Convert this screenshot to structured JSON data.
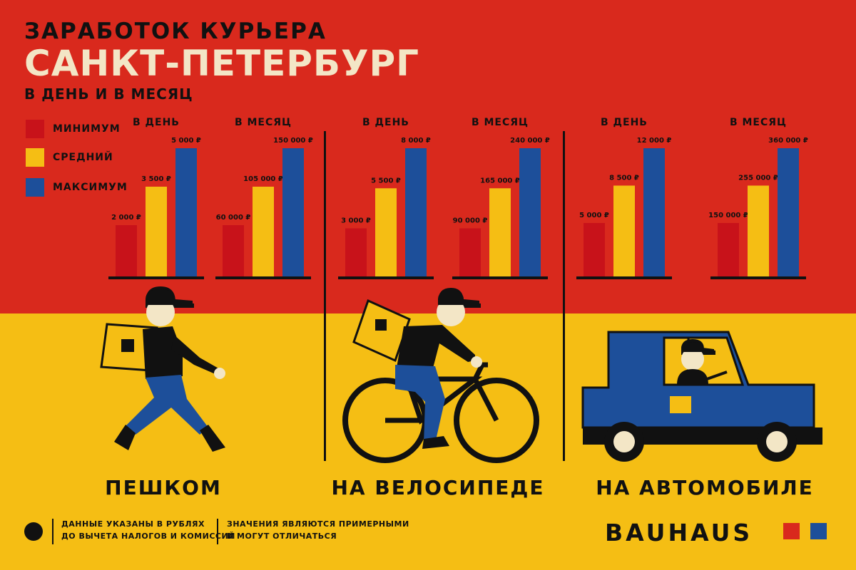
{
  "header": {
    "title_line1": "ЗАРАБОТОК КУРЬЕРА",
    "title_line2": "САНКТ-ПЕТЕРБУРГ",
    "subtitle": "В ДЕНЬ И В МЕСЯЦ"
  },
  "legend": [
    {
      "label": "МИНИМУМ",
      "color": "#c8121a"
    },
    {
      "label": "СРЕДНИЙ",
      "color": "#f5be14"
    },
    {
      "label": "МАКСИМУМ",
      "color": "#1d4f9a"
    }
  ],
  "modes": [
    "ПЕШКОМ",
    "НА ВЕЛОСИПЕДЕ",
    "НА АВТОМОБИЛЕ"
  ],
  "chart_data": [
    {
      "type": "bar",
      "group": "ПЕШКОМ",
      "subtitle": "В ДЕНЬ",
      "categories": [
        "МИНИМУМ",
        "СРЕДНИЙ",
        "МАКСИМУМ"
      ],
      "values": [
        2000,
        3500,
        5000
      ],
      "labels": [
        "2 000 ₽",
        "3 500 ₽",
        "5 000 ₽"
      ]
    },
    {
      "type": "bar",
      "group": "ПЕШКОМ",
      "subtitle": "В МЕСЯЦ",
      "categories": [
        "МИНИМУМ",
        "СРЕДНИЙ",
        "МАКСИМУМ"
      ],
      "values": [
        60000,
        105000,
        150000
      ],
      "labels": [
        "60 000 ₽",
        "105 000 ₽",
        "150 000 ₽"
      ]
    },
    {
      "type": "bar",
      "group": "НА ВЕЛОСИПЕДЕ",
      "subtitle": "В ДЕНЬ",
      "categories": [
        "МИНИМУМ",
        "СРЕДНИЙ",
        "МАКСИМУМ"
      ],
      "values": [
        3000,
        5500,
        8000
      ],
      "labels": [
        "3 000 ₽",
        "5 500 ₽",
        "8 000 ₽"
      ]
    },
    {
      "type": "bar",
      "group": "НА ВЕЛОСИПЕДЕ",
      "subtitle": "В МЕСЯЦ",
      "categories": [
        "МИНИМУМ",
        "СРЕДНИЙ",
        "МАКСИМУМ"
      ],
      "values": [
        90000,
        165000,
        240000
      ],
      "labels": [
        "90 000 ₽",
        "165 000 ₽",
        "240 000 ₽"
      ]
    },
    {
      "type": "bar",
      "group": "НА АВТОМОБИЛЕ",
      "subtitle": "В ДЕНЬ",
      "categories": [
        "МИНИМУМ",
        "СРЕДНИЙ",
        "МАКСИМУМ"
      ],
      "values": [
        5000,
        8500,
        12000
      ],
      "labels": [
        "5 000 ₽",
        "8 500 ₽",
        "12 000 ₽"
      ]
    },
    {
      "type": "bar",
      "group": "НА АВТОМОБИЛЕ",
      "subtitle": "В МЕСЯЦ",
      "categories": [
        "МИНИМУМ",
        "СРЕДНИЙ",
        "МАКСИМУМ"
      ],
      "values": [
        150000,
        255000,
        360000
      ],
      "labels": [
        "150 000 ₽",
        "255 000 ₽",
        "360 000 ₽"
      ]
    }
  ],
  "footer": {
    "note1_line1": "ДАННЫЕ УКАЗАНЫ В РУБЛЯХ",
    "note1_line2": "ДО ВЫЧЕТА НАЛОГОВ И КОМИССИЙ",
    "note2_line1": "ЗНАЧЕНИЯ ЯВЛЯЮТСЯ ПРИМЕРНЫМИ",
    "note2_line2": "И МОГУТ ОТЛИЧАТЬСЯ",
    "brand": "BAUHAUS"
  },
  "colors": {
    "red_bg": "#d9291d",
    "yellow_bg": "#f5be14",
    "blue": "#1d4f9a",
    "black": "#111111",
    "cream": "#f3e6c6"
  },
  "icons": [
    "walking-courier-icon",
    "cyclist-courier-icon",
    "delivery-van-icon"
  ]
}
